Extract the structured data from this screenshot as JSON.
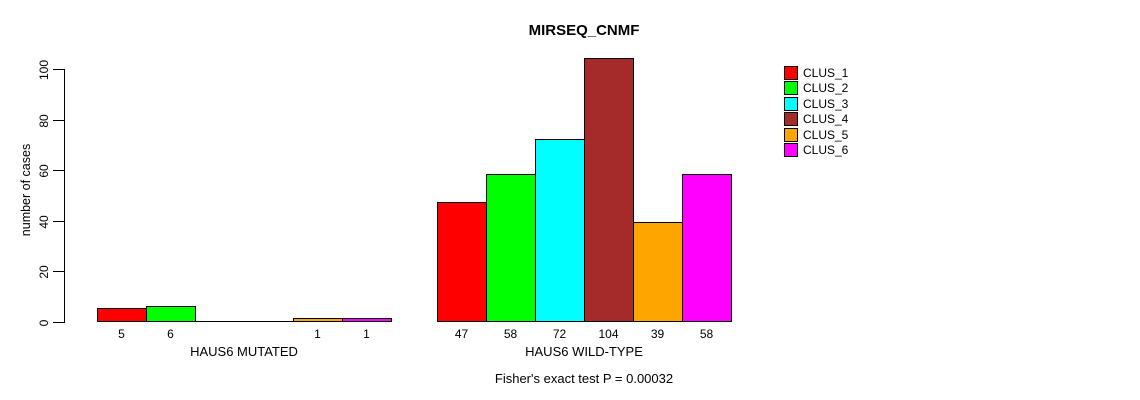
{
  "chart_data": {
    "type": "bar",
    "title": "MIRSEQ_CNMF",
    "xlabel": "",
    "ylabel": "number of cases",
    "ylim": [
      0,
      104
    ],
    "yticks": [
      0,
      20,
      40,
      60,
      80,
      100
    ],
    "grid": false,
    "legend_position": "top-right",
    "categories": [
      "HAUS6 MUTATED",
      "HAUS6 WILD-TYPE"
    ],
    "series": [
      {
        "name": "CLUS_1",
        "color": "#FF0000",
        "values": [
          5,
          47
        ]
      },
      {
        "name": "CLUS_2",
        "color": "#00FF00",
        "values": [
          6,
          58
        ]
      },
      {
        "name": "CLUS_3",
        "color": "#00FFFF",
        "values": [
          0,
          72
        ]
      },
      {
        "name": "CLUS_4",
        "color": "#A52A2A",
        "values": [
          0,
          104
        ]
      },
      {
        "name": "CLUS_5",
        "color": "#FFA500",
        "values": [
          1,
          39
        ]
      },
      {
        "name": "CLUS_6",
        "color": "#FF00FF",
        "values": [
          1,
          58
        ]
      }
    ],
    "bar_value_labels": {
      "HAUS6 MUTATED": [
        "5",
        "6",
        "",
        "",
        "1",
        "1"
      ],
      "HAUS6 WILD-TYPE": [
        "47",
        "58",
        "72",
        "104",
        "39",
        "58"
      ]
    },
    "annotation": "Fisher's exact test P = 0.00032"
  }
}
